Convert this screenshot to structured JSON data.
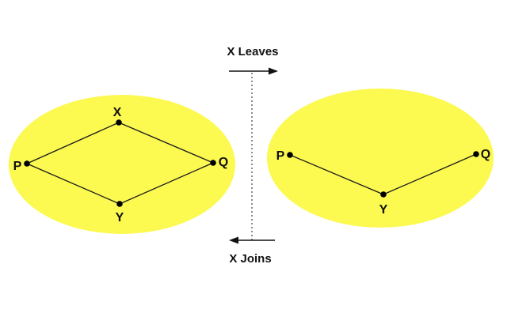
{
  "colors": {
    "ellipse_fill": "#fcf951",
    "line": "#1a1a1a",
    "node": "#000000",
    "background": "#ffffff"
  },
  "captions": {
    "leaves": "X Leaves",
    "joins": "X Joins"
  },
  "left_network": {
    "nodes": [
      {
        "id": "X",
        "label": "X"
      },
      {
        "id": "P",
        "label": "P"
      },
      {
        "id": "Q",
        "label": "Q"
      },
      {
        "id": "Y",
        "label": "Y"
      }
    ],
    "edges": [
      [
        "P",
        "X"
      ],
      [
        "X",
        "Q"
      ],
      [
        "P",
        "Y"
      ],
      [
        "Y",
        "Q"
      ]
    ]
  },
  "right_network": {
    "nodes": [
      {
        "id": "P",
        "label": "P"
      },
      {
        "id": "Q",
        "label": "Q"
      },
      {
        "id": "Y",
        "label": "Y"
      }
    ],
    "edges": [
      [
        "P",
        "Y"
      ],
      [
        "Y",
        "Q"
      ]
    ]
  }
}
